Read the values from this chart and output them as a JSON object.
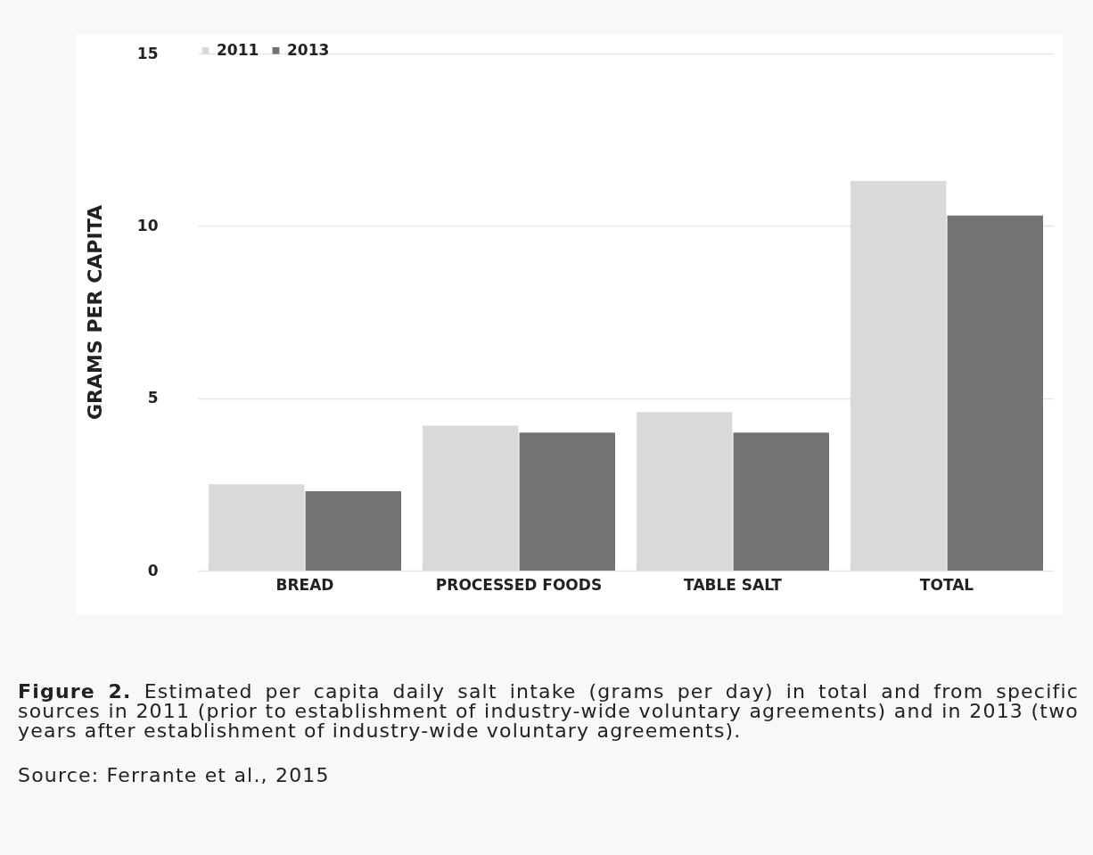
{
  "chart_data": {
    "type": "bar",
    "ylabel": "GRAMS PER CAPITA",
    "categories": [
      "BREAD",
      "PROCESSED FOODS",
      "TABLE SALT",
      "TOTAL"
    ],
    "series": [
      {
        "name": "2011",
        "color": "#d9d9d9",
        "values": [
          2.5,
          4.2,
          4.6,
          11.3
        ]
      },
      {
        "name": "2013",
        "color": "#737373",
        "values": [
          2.3,
          4.0,
          4.0,
          10.3
        ]
      }
    ],
    "ylim": [
      0,
      15
    ],
    "yticks": [
      0,
      5,
      10,
      15
    ],
    "grid": "y",
    "legend": "top",
    "annotations": [
      "Figure 2.",
      "Estimated per capita daily salt intake (grams per day) in total and from specific sources in 2011 (prior to establishment of industry-wide voluntary agreements) and in 2013 (two years after establishment of industry-wide voluntary agreements).",
      "Source: Ferrante et al., 2015"
    ]
  }
}
